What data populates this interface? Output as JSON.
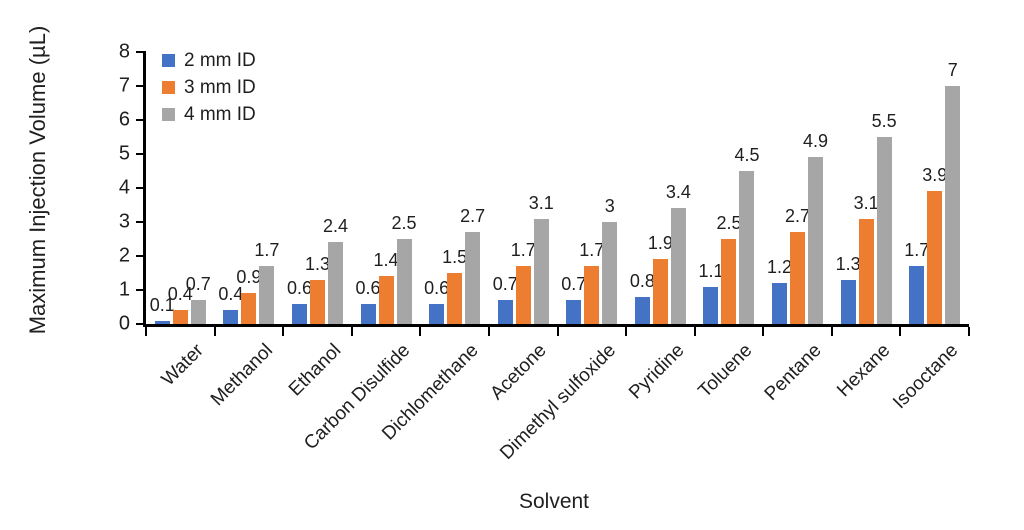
{
  "chart_data": {
    "type": "bar",
    "title": "",
    "xlabel": "Solvent",
    "ylabel": "Maximum Injection Volume (µL)",
    "ylim": [
      0,
      8
    ],
    "ytick_step": 1,
    "grid": false,
    "legend_position": "top-left-inside",
    "categories": [
      "Water",
      "Methanol",
      "Ethanol",
      "Carbon Disulfide",
      "Dichlomethane",
      "Acetone",
      "Dimethyl sulfoxide",
      "Pyridine",
      "Toluene",
      "Pentane",
      "Hexane",
      "Isooctane"
    ],
    "series": [
      {
        "name": "2 mm ID",
        "color": "#4472C4",
        "values": [
          0.1,
          0.4,
          0.6,
          0.6,
          0.6,
          0.7,
          0.7,
          0.8,
          1.1,
          1.2,
          1.3,
          1.7
        ]
      },
      {
        "name": "3 mm ID",
        "color": "#ED7D31",
        "values": [
          0.4,
          0.9,
          1.3,
          1.4,
          1.5,
          1.7,
          1.7,
          1.9,
          2.5,
          2.7,
          3.1,
          3.9
        ]
      },
      {
        "name": "4 mm ID",
        "color": "#A6A6A6",
        "values": [
          0.7,
          1.7,
          2.4,
          2.5,
          2.7,
          3.1,
          3,
          3.4,
          4.5,
          4.9,
          5.5,
          7
        ]
      }
    ],
    "axis_color": "#000000",
    "text_color": "#1f1f1f"
  }
}
